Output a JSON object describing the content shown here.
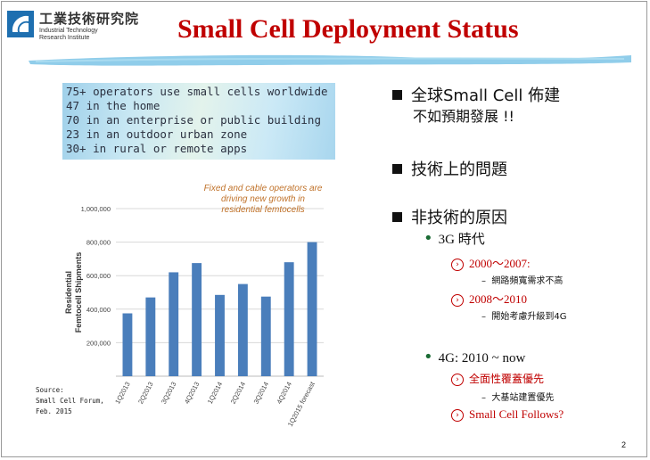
{
  "logo": {
    "name_zh": "工業技術研究院",
    "name_en_line1": "Industrial Technology",
    "name_en_line2": "Research Institute"
  },
  "title": "Small Cell Deployment Status",
  "banner": {
    "lines": [
      "75+ operators use small cells worldwide",
      "47 in the home",
      "70 in an enterprise or public building",
      "23 in an outdoor urban zone",
      "30+ in rural or remote apps"
    ]
  },
  "chart_data": {
    "type": "bar",
    "ylabel": "Residential Femtocell Shipments",
    "categories": [
      "1Q2013",
      "2Q2013",
      "3Q2013",
      "4Q2013",
      "1Q2014",
      "2Q2014",
      "3Q2014",
      "4Q2014",
      "1Q2015 forecast"
    ],
    "values": [
      375000,
      470000,
      620000,
      675000,
      485000,
      550000,
      475000,
      680000,
      800000
    ],
    "ylim": [
      0,
      1000000
    ],
    "yticks": [
      "200,000",
      "400,000",
      "600,000",
      "800,000",
      "1,000,000"
    ],
    "grid": true,
    "bar_color": "#4a7ebb",
    "annotation": [
      "Fixed and cable operators are",
      "driving new growth in",
      "residential femtocells"
    ]
  },
  "source": [
    "Source:",
    "Small Cell Forum,",
    "Feb. 2015"
  ],
  "bullets": {
    "l1_a": "全球Small Cell 佈建",
    "l1_a_cont": "不如預期發展 !!",
    "l1_b": "技術上的問題",
    "l1_c": "非技術的原因",
    "era_3g": "3G 時代",
    "sub_2000": "2000～2007:",
    "note_2000": "網路頻寬需求不高",
    "sub_2008": "2008～2010",
    "note_2008": "開始考慮升級到4G",
    "era_4g": "4G: 2010 ~ now",
    "sub_coverage": "全面性覆蓋優先",
    "note_coverage": "大基站建置優先",
    "sub_follows": "Small Cell Follows?"
  },
  "page_number": "2",
  "colors": {
    "title": "#c00000",
    "accent_green": "#1a6b34",
    "bar": "#4a7ebb"
  }
}
